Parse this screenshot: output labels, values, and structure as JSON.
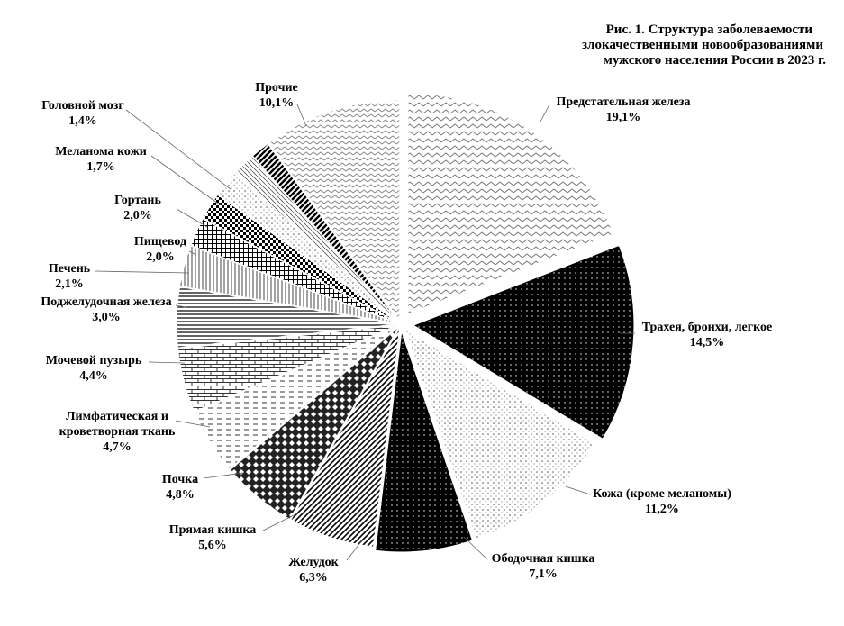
{
  "chart_data": {
    "type": "pie",
    "title_lines": [
      "Рис. 1. Структура заболеваемости",
      "злокачественными новообразованиями",
      "мужского населения России в 2023 г."
    ],
    "slices": [
      {
        "label_lines": [
          "Предстательная железа"
        ],
        "value_text": "19,1%",
        "value": 19.1,
        "color": "#ffffff",
        "pattern": "zigzag"
      },
      {
        "label_lines": [
          "Трахея, бронхи, легкое"
        ],
        "value_text": "14,5%",
        "value": 14.5,
        "color": "#000000",
        "pattern": "solid-dots"
      },
      {
        "label_lines": [
          "Кожа (кроме меланомы)"
        ],
        "value_text": "11,2%",
        "value": 11.2,
        "color": "#ffffff",
        "pattern": "sparse-dots"
      },
      {
        "label_lines": [
          "Ободочная кишка"
        ],
        "value_text": "7,1%",
        "value": 7.1,
        "color": "#000000",
        "pattern": "solid-dots"
      },
      {
        "label_lines": [
          "Желудок"
        ],
        "value_text": "6,3%",
        "value": 6.3,
        "color": "#ffffff",
        "pattern": "diag-lines"
      },
      {
        "label_lines": [
          "Прямая кишка"
        ],
        "value_text": "5,6%",
        "value": 5.6,
        "color": "#ffffff",
        "pattern": "diamond"
      },
      {
        "label_lines": [
          "Почка"
        ],
        "value_text": "4,8%",
        "value": 4.8,
        "color": "#ffffff",
        "pattern": "dashes"
      },
      {
        "label_lines": [
          "Лимфатическая  и",
          "кроветворная ткань"
        ],
        "value_text": "4,7%",
        "value": 4.7,
        "color": "#ffffff",
        "pattern": "brick"
      },
      {
        "label_lines": [
          "Мочевой пузырь"
        ],
        "value_text": "4,4%",
        "value": 4.4,
        "color": "#ffffff",
        "pattern": "hlines"
      },
      {
        "label_lines": [
          "Поджелудочная железа"
        ],
        "value_text": "3,0%",
        "value": 3.0,
        "color": "#ffffff",
        "pattern": "vlines"
      },
      {
        "label_lines": [
          "Печень"
        ],
        "value_text": "2,1%",
        "value": 2.1,
        "color": "#ffffff",
        "pattern": "grid"
      },
      {
        "label_lines": [
          "Пищевод"
        ],
        "value_text": "2,0%",
        "value": 2.0,
        "color": "#ffffff",
        "pattern": "checker"
      },
      {
        "label_lines": [
          "Гортань"
        ],
        "value_text": "2,0%",
        "value": 2.0,
        "color": "#ffffff",
        "pattern": "sparse-dots"
      },
      {
        "label_lines": [
          "Меланома кожи"
        ],
        "value_text": "1,7%",
        "value": 1.7,
        "color": "#ffffff",
        "pattern": "diag-thin"
      },
      {
        "label_lines": [
          "Головной мозг"
        ],
        "value_text": "1,4%",
        "value": 1.4,
        "color": "#ffffff",
        "pattern": "diag-bold"
      },
      {
        "label_lines": [
          "Прочие"
        ],
        "value_text": "10,1%",
        "value": 10.1,
        "color": "#ffffff",
        "pattern": "zigzag-fine"
      }
    ]
  }
}
